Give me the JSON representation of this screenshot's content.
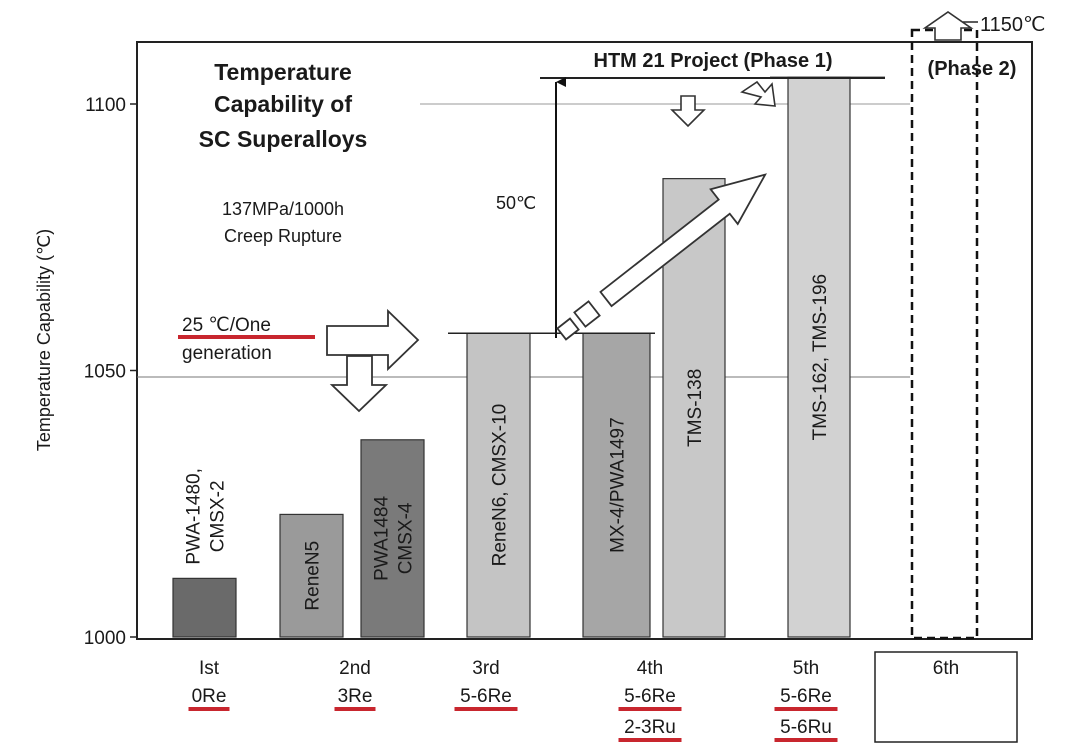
{
  "chart_data": {
    "type": "bar",
    "title": [
      "Temperature",
      "Capability of",
      "SC Superalloys"
    ],
    "subtitle": [
      "137MPa/1000h",
      "Creep Rupture"
    ],
    "ylabel": "Temperature Capability (℃)",
    "ylim": [
      1000,
      1100
    ],
    "yticks": [
      "1000",
      "1050",
      "1100"
    ],
    "grid": true,
    "generations": [
      {
        "gen": "Ist",
        "re": "0Re",
        "ru": ""
      },
      {
        "gen": "2nd",
        "re": "3Re",
        "ru": ""
      },
      {
        "gen": "3rd",
        "re": "5-6Re",
        "ru": ""
      },
      {
        "gen": "4th",
        "re": "5-6Re",
        "ru": "2-3Ru"
      },
      {
        "gen": "5th",
        "re": "5-6Re",
        "ru": "5-6Ru"
      },
      {
        "gen": "6th",
        "re": "",
        "ru": ""
      }
    ],
    "bars": [
      {
        "label": [
          "PWA-1480,",
          "CMSX-2"
        ],
        "value": 1011,
        "color": "#6a6a6a",
        "label_pos": "above"
      },
      {
        "label": [
          "ReneN5"
        ],
        "value": 1023,
        "color": "#9a9a9a",
        "label_pos": "inside"
      },
      {
        "label": [
          "PWA1484",
          "CMSX-4"
        ],
        "value": 1037,
        "color": "#7a7a7a",
        "label_pos": "inside"
      },
      {
        "label": [
          "ReneN6, CMSX-10"
        ],
        "value": 1057,
        "color": "#c4c4c4",
        "label_pos": "inside"
      },
      {
        "label": [
          "MX-4/PWA1497"
        ],
        "value": 1057,
        "color": "#a6a6a6",
        "label_pos": "inside"
      },
      {
        "label": [
          "TMS-138"
        ],
        "value": 1086,
        "color": "#c8c8c8",
        "label_pos": "inside"
      },
      {
        "label": [
          "TMS-162, TMS-196"
        ],
        "value": 1105,
        "color": "#d2d2d2",
        "label_pos": "inside"
      }
    ],
    "annotations": {
      "per_generation": [
        "25 ℃/One",
        "generation"
      ],
      "project": "HTM 21 Project (Phase 1)",
      "phase2": "(Phase 2)",
      "target": "1150℃",
      "delta": "50℃"
    }
  }
}
